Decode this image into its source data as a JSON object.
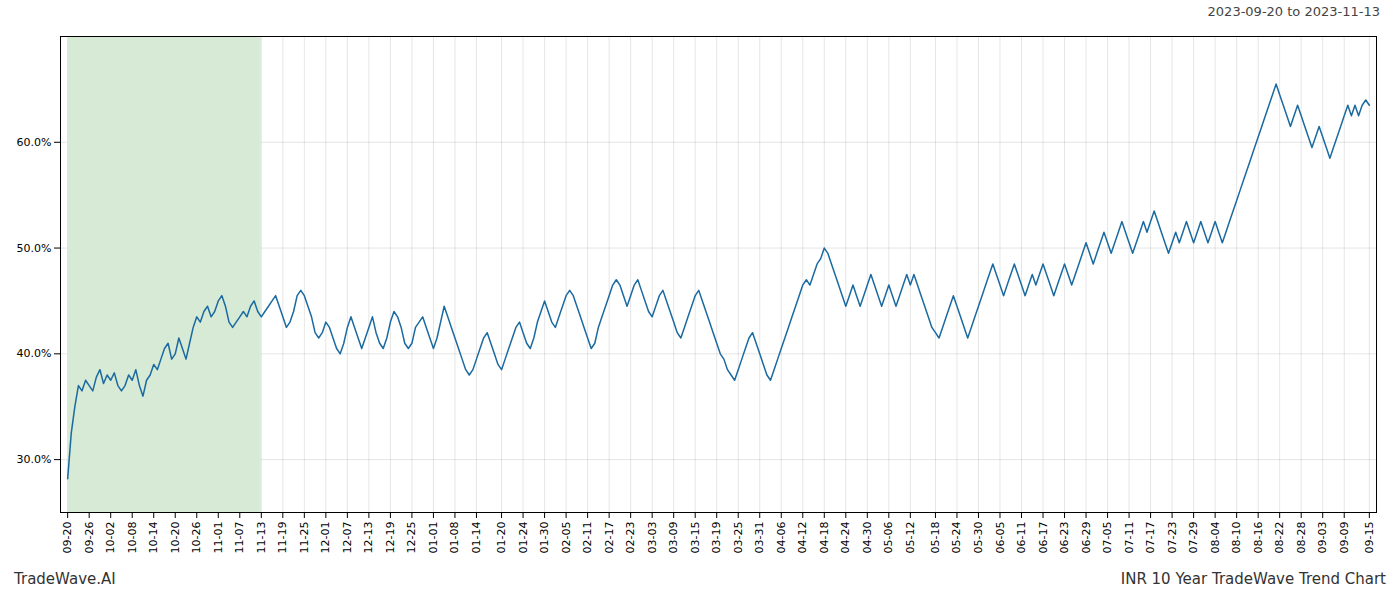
{
  "chart_data": {
    "type": "line",
    "title": "INR 10 Year TradeWave Trend Chart",
    "subtitle": "2023-09-20 to 2023-11-13",
    "annotations": [
      "TradeWave.AI"
    ],
    "color": "#1a6aa0",
    "grid": true,
    "shaded_region": {
      "from": "09-20",
      "to": "11-13",
      "color": "#d6ead6"
    },
    "ylim": [
      25.0,
      70.0
    ],
    "yticks": [
      {
        "value": 30.0,
        "label": "30.0%"
      },
      {
        "value": 40.0,
        "label": "40.0%"
      },
      {
        "value": 50.0,
        "label": "50.0%"
      },
      {
        "value": 60.0,
        "label": "60.0%"
      }
    ],
    "categories": [
      "09-20",
      null,
      null,
      null,
      null,
      null,
      "09-26",
      null,
      null,
      null,
      null,
      null,
      "10-02",
      null,
      null,
      null,
      null,
      null,
      "10-08",
      null,
      null,
      null,
      null,
      null,
      "10-14",
      null,
      null,
      null,
      null,
      null,
      "10-20",
      null,
      null,
      null,
      null,
      null,
      "10-26",
      null,
      null,
      null,
      null,
      null,
      "11-01",
      null,
      null,
      null,
      null,
      null,
      "11-07",
      null,
      null,
      null,
      null,
      null,
      "11-13",
      null,
      null,
      null,
      null,
      null,
      "11-19",
      null,
      null,
      null,
      null,
      null,
      "11-25",
      null,
      null,
      null,
      null,
      null,
      "12-01",
      null,
      null,
      null,
      null,
      null,
      "12-07",
      null,
      null,
      null,
      null,
      null,
      "12-13",
      null,
      null,
      null,
      null,
      null,
      "12-19",
      null,
      null,
      null,
      null,
      null,
      "12-25",
      null,
      null,
      null,
      null,
      null,
      "01-01",
      null,
      null,
      null,
      null,
      null,
      "01-08",
      null,
      null,
      null,
      null,
      null,
      "01-14",
      null,
      null,
      null,
      null,
      null,
      null,
      "01-20",
      null,
      null,
      null,
      null,
      null,
      "01-24",
      null,
      null,
      null,
      null,
      null,
      "01-30",
      null,
      null,
      null,
      null,
      null,
      "02-05",
      null,
      null,
      null,
      null,
      null,
      "02-11",
      null,
      null,
      null,
      null,
      null,
      "02-17",
      null,
      null,
      null,
      null,
      null,
      "02-23",
      null,
      null,
      null,
      null,
      null,
      "03-03",
      null,
      null,
      null,
      null,
      null,
      "03-09",
      null,
      null,
      null,
      null,
      null,
      "03-15",
      null,
      null,
      null,
      null,
      null,
      "03-19",
      null,
      null,
      null,
      null,
      null,
      "03-25",
      null,
      null,
      null,
      null,
      null,
      "03-31",
      null,
      null,
      null,
      null,
      null,
      "04-06",
      null,
      null,
      null,
      null,
      null,
      "04-12",
      null,
      null,
      null,
      null,
      null,
      "04-18",
      null,
      null,
      null,
      null,
      null,
      "04-24",
      null,
      null,
      null,
      null,
      null,
      "04-30",
      null,
      null,
      null,
      null,
      null,
      "05-06",
      null,
      null,
      null,
      null,
      null,
      "05-12",
      null,
      null,
      null,
      null,
      null,
      null,
      "05-18",
      null,
      null,
      null,
      null,
      null,
      "05-24",
      null,
      null,
      null,
      null,
      null,
      "05-30",
      null,
      null,
      null,
      null,
      null,
      "06-05",
      null,
      null,
      null,
      null,
      null,
      "06-11",
      null,
      null,
      null,
      null,
      null,
      "06-17",
      null,
      null,
      null,
      null,
      null,
      "06-23",
      null,
      null,
      null,
      null,
      null,
      "06-29",
      null,
      null,
      null,
      null,
      null,
      "07-05",
      null,
      null,
      null,
      null,
      null,
      "07-11",
      null,
      null,
      null,
      null,
      null,
      "07-17",
      null,
      null,
      null,
      null,
      null,
      "07-23",
      null,
      null,
      null,
      null,
      null,
      "07-29",
      null,
      null,
      null,
      null,
      null,
      "08-04",
      null,
      null,
      null,
      null,
      null,
      "08-10",
      null,
      null,
      null,
      null,
      null,
      "08-16",
      null,
      null,
      null,
      null,
      null,
      "08-22",
      null,
      null,
      null,
      null,
      null,
      "08-28",
      null,
      null,
      null,
      null,
      null,
      "09-03",
      null,
      null,
      null,
      null,
      null,
      "09-09",
      null,
      null,
      null,
      null,
      null,
      null,
      "09-15"
    ],
    "values": [
      28.2,
      32.5,
      35.0,
      37.0,
      36.5,
      37.5,
      37.0,
      36.5,
      37.8,
      38.5,
      37.2,
      38.0,
      37.5,
      38.2,
      37.0,
      36.5,
      37.0,
      38.0,
      37.5,
      38.5,
      37.0,
      36.0,
      37.5,
      38.0,
      39.0,
      38.5,
      39.5,
      40.5,
      41.0,
      39.5,
      40.0,
      41.5,
      40.5,
      39.5,
      41.0,
      42.5,
      43.5,
      43.0,
      44.0,
      44.5,
      43.5,
      44.0,
      45.0,
      45.5,
      44.5,
      43.0,
      42.5,
      43.0,
      43.5,
      44.0,
      43.5,
      44.5,
      45.0,
      44.0,
      43.5,
      44.0,
      44.5,
      45.0,
      45.5,
      44.5,
      43.5,
      42.5,
      43.0,
      44.0,
      45.5,
      46.0,
      45.5,
      44.5,
      43.5,
      42.0,
      41.5,
      42.0,
      43.0,
      42.5,
      41.5,
      40.5,
      40.0,
      41.0,
      42.5,
      43.5,
      42.5,
      41.5,
      40.5,
      41.5,
      42.5,
      43.5,
      42.0,
      41.0,
      40.5,
      41.5,
      43.0,
      44.0,
      43.5,
      42.5,
      41.0,
      40.5,
      41.0,
      42.5,
      43.0,
      43.5,
      42.5,
      41.5,
      40.5,
      41.5,
      43.0,
      44.5,
      43.5,
      42.5,
      41.5,
      40.5,
      39.5,
      38.5,
      38.0,
      38.5,
      39.5,
      40.5,
      41.5,
      42.0,
      41.0,
      40.0,
      39.0,
      38.5,
      39.5,
      40.5,
      41.5,
      42.5,
      43.0,
      42.0,
      41.0,
      40.5,
      41.5,
      43.0,
      44.0,
      45.0,
      44.0,
      43.0,
      42.5,
      43.5,
      44.5,
      45.5,
      46.0,
      45.5,
      44.5,
      43.5,
      42.5,
      41.5,
      40.5,
      41.0,
      42.5,
      43.5,
      44.5,
      45.5,
      46.5,
      47.0,
      46.5,
      45.5,
      44.5,
      45.5,
      46.5,
      47.0,
      46.0,
      45.0,
      44.0,
      43.5,
      44.5,
      45.5,
      46.0,
      45.0,
      44.0,
      43.0,
      42.0,
      41.5,
      42.5,
      43.5,
      44.5,
      45.5,
      46.0,
      45.0,
      44.0,
      43.0,
      42.0,
      41.0,
      40.0,
      39.5,
      38.5,
      38.0,
      37.5,
      38.5,
      39.5,
      40.5,
      41.5,
      42.0,
      41.0,
      40.0,
      39.0,
      38.0,
      37.5,
      38.5,
      39.5,
      40.5,
      41.5,
      42.5,
      43.5,
      44.5,
      45.5,
      46.5,
      47.0,
      46.5,
      47.5,
      48.5,
      49.0,
      50.0,
      49.5,
      48.5,
      47.5,
      46.5,
      45.5,
      44.5,
      45.5,
      46.5,
      45.5,
      44.5,
      45.5,
      46.5,
      47.5,
      46.5,
      45.5,
      44.5,
      45.5,
      46.5,
      45.5,
      44.5,
      45.5,
      46.5,
      47.5,
      46.5,
      47.5,
      46.5,
      45.5,
      44.5,
      43.5,
      42.5,
      42.0,
      41.5,
      42.5,
      43.5,
      44.5,
      45.5,
      44.5,
      43.5,
      42.5,
      41.5,
      42.5,
      43.5,
      44.5,
      45.5,
      46.5,
      47.5,
      48.5,
      47.5,
      46.5,
      45.5,
      46.5,
      47.5,
      48.5,
      47.5,
      46.5,
      45.5,
      46.5,
      47.5,
      46.5,
      47.5,
      48.5,
      47.5,
      46.5,
      45.5,
      46.5,
      47.5,
      48.5,
      47.5,
      46.5,
      47.5,
      48.5,
      49.5,
      50.5,
      49.5,
      48.5,
      49.5,
      50.5,
      51.5,
      50.5,
      49.5,
      50.5,
      51.5,
      52.5,
      51.5,
      50.5,
      49.5,
      50.5,
      51.5,
      52.5,
      51.5,
      52.5,
      53.5,
      52.5,
      51.5,
      50.5,
      49.5,
      50.5,
      51.5,
      50.5,
      51.5,
      52.5,
      51.5,
      50.5,
      51.5,
      52.5,
      51.5,
      50.5,
      51.5,
      52.5,
      51.5,
      50.5,
      51.5,
      52.5,
      53.5,
      54.5,
      55.5,
      56.5,
      57.5,
      58.5,
      59.5,
      60.5,
      61.5,
      62.5,
      63.5,
      64.5,
      65.5,
      64.5,
      63.5,
      62.5,
      61.5,
      62.5,
      63.5,
      62.5,
      61.5,
      60.5,
      59.5,
      60.5,
      61.5,
      60.5,
      59.5,
      58.5,
      59.5,
      60.5,
      61.5,
      62.5,
      63.5,
      62.5,
      63.5,
      62.5,
      63.5,
      64.0,
      63.5
    ]
  }
}
